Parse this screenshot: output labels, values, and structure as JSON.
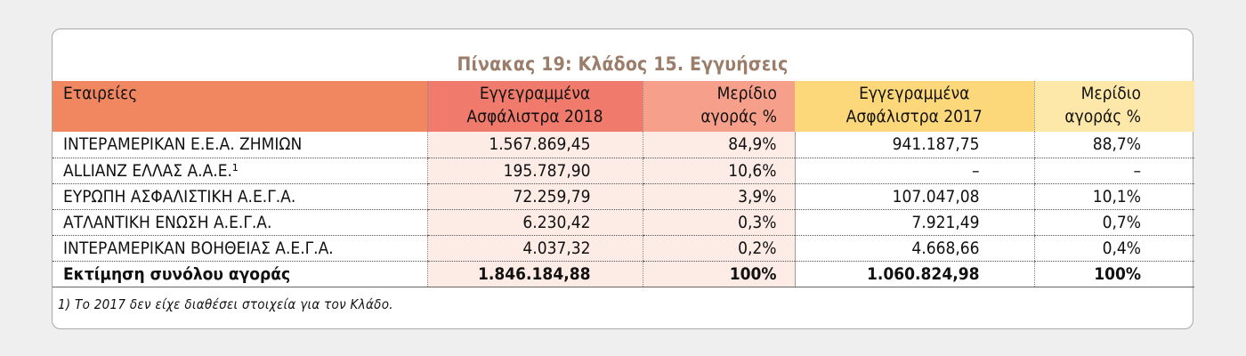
{
  "title": "Πίνακας 19: Κλάδος 15. Εγγυήσεις",
  "headers": {
    "company": "Εταιρείες",
    "premiums_2018_line1": "Εγγεγραμμένα",
    "premiums_2018_line2": "Ασφάλιστρα 2018",
    "share_2018_line1": "Μερίδιο",
    "share_2018_line2": "αγοράς %",
    "premiums_2017_line1": "Εγγεγραμμένα",
    "premiums_2017_line2": "Ασφάλιστρα 2017",
    "share_2017_line1": "Μερίδιο",
    "share_2017_line2": "αγοράς %"
  },
  "rows": [
    {
      "company": "ΙΝΤΕΡΑΜΕΡΙΚΑΝ Ε.Ε.Α. ΖΗΜΙΩΝ",
      "premiums_2018": "1.567.869,45",
      "share_2018": "84,9%",
      "premiums_2017": "941.187,75",
      "share_2017": "88,7%"
    },
    {
      "company": "ALLIANZ ΕΛΛΑΣ Α.Α.Ε.¹",
      "premiums_2018": "195.787,90",
      "share_2018": "10,6%",
      "premiums_2017": "–",
      "share_2017": "–"
    },
    {
      "company": "ΕΥΡΩΠΗ ΑΣΦΑΛΙΣΤΙΚΗ Α.Ε.Γ.Α.",
      "premiums_2018": "72.259,79",
      "share_2018": "3,9%",
      "premiums_2017": "107.047,08",
      "share_2017": "10,1%"
    },
    {
      "company": "ΑΤΛΑΝΤΙΚΗ ΕΝΩΣΗ Α.Ε.Γ.Α.",
      "premiums_2018": "6.230,42",
      "share_2018": "0,3%",
      "premiums_2017": "7.921,49",
      "share_2017": "0,7%"
    },
    {
      "company": "ΙΝΤΕΡΑΜΕΡΙΚΑΝ ΒΟΗΘΕΙΑΣ Α.Ε.Γ.Α.",
      "premiums_2018": "4.037,32",
      "share_2018": "0,2%",
      "premiums_2017": "4.668,66",
      "share_2017": "0,4%"
    }
  ],
  "total": {
    "company": "Εκτίμηση συνόλου αγοράς",
    "premiums_2018": "1.846.184,88",
    "share_2018": "100%",
    "premiums_2017": "1.060.824,98",
    "share_2017": "100%"
  },
  "footnote": "1) Το 2017 δεν είχε διαθέσει στοιχεία για τον Κλάδο.",
  "colors": {
    "header_company": "#f08760",
    "header_2018": "#f07a6b",
    "header_share_2018": "#f6a08b",
    "header_2017": "#fdd87a",
    "header_share_2017": "#fde7a9",
    "cell_2018": "#fdebe6",
    "title": "#9b7d6a"
  }
}
